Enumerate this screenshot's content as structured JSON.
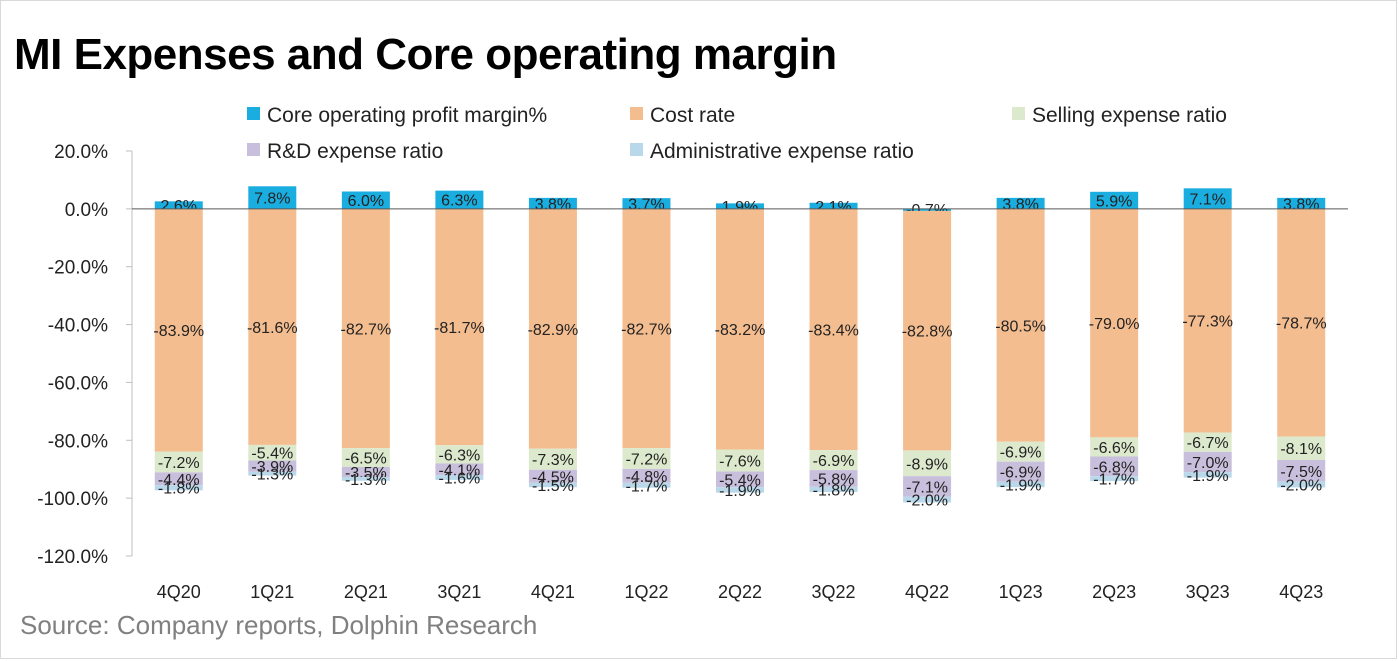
{
  "title": "MI Expenses and Core operating margin",
  "source": "Source: Company reports, Dolphin Research",
  "chart_data": {
    "type": "bar",
    "stacked": true,
    "categories": [
      "4Q20",
      "1Q21",
      "2Q21",
      "3Q21",
      "4Q21",
      "1Q22",
      "2Q22",
      "3Q22",
      "4Q22",
      "1Q23",
      "2Q23",
      "3Q23",
      "4Q23"
    ],
    "ylim": [
      -120,
      20
    ],
    "y_ticks": [
      "20.0%",
      "0.0%",
      "-20.0%",
      "-40.0%",
      "-60.0%",
      "-80.0%",
      "-100.0%",
      "-120.0%"
    ],
    "y_tick_values": [
      20,
      0,
      -20,
      -40,
      -60,
      -80,
      -100,
      -120
    ],
    "legend_position": "top",
    "series": [
      {
        "name": "Core operating profit margin%",
        "color": "#1aaee0",
        "values": [
          2.6,
          7.8,
          6.0,
          6.3,
          3.8,
          3.7,
          1.9,
          2.1,
          -0.7,
          3.8,
          5.9,
          7.1,
          3.8
        ],
        "labels": [
          "2.6%",
          "7.8%",
          "6.0%",
          "6.3%",
          "3.8%",
          "3.7%",
          "1.9%",
          "2.1%",
          "-0.7%",
          "3.8%",
          "5.9%",
          "7.1%",
          "3.8%"
        ]
      },
      {
        "name": "Cost rate",
        "color": "#f4bd90",
        "values": [
          -83.9,
          -81.6,
          -82.7,
          -81.7,
          -82.9,
          -82.7,
          -83.2,
          -83.4,
          -82.8,
          -80.5,
          -79.0,
          -77.3,
          -78.7
        ],
        "labels": [
          "-83.9%",
          "-81.6%",
          "-82.7%",
          "-81.7%",
          "-82.9%",
          "-82.7%",
          "-83.2%",
          "-83.4%",
          "-82.8%",
          "-80.5%",
          "-79.0%",
          "-77.3%",
          "-78.7%"
        ]
      },
      {
        "name": "Selling expense ratio",
        "color": "#dde9cd",
        "values": [
          -7.2,
          -5.4,
          -6.5,
          -6.3,
          -7.3,
          -7.2,
          -7.6,
          -6.9,
          -8.9,
          -6.9,
          -6.6,
          -6.7,
          -8.1
        ],
        "labels": [
          "-7.2%",
          "-5.4%",
          "-6.5%",
          "-6.3%",
          "-7.3%",
          "-7.2%",
          "-7.6%",
          "-6.9%",
          "-8.9%",
          "-6.9%",
          "-6.6%",
          "-6.7%",
          "-8.1%"
        ]
      },
      {
        "name": "R&D expense ratio",
        "color": "#c8bfdc",
        "values": [
          -4.4,
          -3.9,
          -3.5,
          -4.1,
          -4.5,
          -4.8,
          -5.4,
          -5.8,
          -7.1,
          -6.9,
          -6.8,
          -7.0,
          -7.5
        ],
        "labels": [
          "-4.4%",
          "-3.9%",
          "-3.5%",
          "-4.1%",
          "-4.5%",
          "-4.8%",
          "-5.4%",
          "-5.8%",
          "-7.1%",
          "-6.9%",
          "-6.8%",
          "-7.0%",
          "-7.5%"
        ]
      },
      {
        "name": "Administrative expense ratio",
        "color": "#b9d9ea",
        "values": [
          -1.8,
          -1.3,
          -1.3,
          -1.6,
          -1.5,
          -1.7,
          -1.9,
          -1.8,
          -2.0,
          -1.9,
          -1.7,
          -1.9,
          -2.0
        ],
        "labels": [
          "-1.8%",
          "-1.3%",
          "-1.3%",
          "-1.6%",
          "-1.5%",
          "-1.7%",
          "-1.9%",
          "-1.8%",
          "-2.0%",
          "-1.9%",
          "-1.7%",
          "-1.9%",
          "-2.0%"
        ]
      }
    ]
  }
}
